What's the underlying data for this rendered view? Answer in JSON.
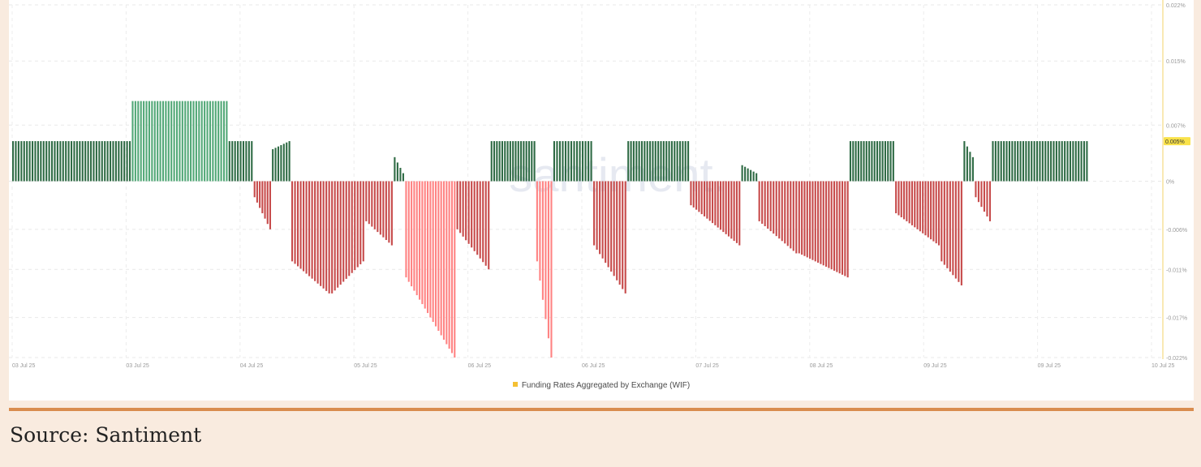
{
  "colors": {
    "positive": "#2f6b45",
    "positive_highlight": "#52a877",
    "negative": "#c74b4b",
    "negative_highlight": "#ff8383",
    "legend": "#f4c033",
    "current_value_bg": "#f9e24a"
  },
  "legend": {
    "label": "Funding Rates Aggregated by Exchange (WIF)"
  },
  "watermark": "santiment.",
  "source": "Source: Santiment",
  "chart_data": {
    "type": "bar",
    "series": [
      {
        "name": "Funding Rates Aggregated by Exchange (WIF)"
      }
    ],
    "current_value_label": "0.005%",
    "y_axis": {
      "position": "right",
      "ticks": [
        {
          "value": 0.022,
          "label": "0.022%"
        },
        {
          "value": 0.015,
          "label": "0.015%"
        },
        {
          "value": 0.007,
          "label": "0.007%"
        },
        {
          "value": 0,
          "label": "0%"
        },
        {
          "value": -0.006,
          "label": "-0.006%"
        },
        {
          "value": -0.011,
          "label": "-0.011%"
        },
        {
          "value": -0.017,
          "label": "-0.017%"
        },
        {
          "value": -0.022,
          "label": "-0.022%"
        }
      ],
      "ylim": [
        -0.022,
        0.022
      ]
    },
    "x_axis": {
      "ticks": [
        {
          "pos": 0,
          "label": "03 Jul 25"
        },
        {
          "pos": 1,
          "label": "03 Jul 25"
        },
        {
          "pos": 2,
          "label": "04 Jul 25"
        },
        {
          "pos": 3,
          "label": "05 Jul 25"
        },
        {
          "pos": 4,
          "label": "06 Jul 25"
        },
        {
          "pos": 5,
          "label": "06 Jul 25"
        },
        {
          "pos": 6,
          "label": "07 Jul 25"
        },
        {
          "pos": 7,
          "label": "08 Jul 25"
        },
        {
          "pos": 8,
          "label": "09 Jul 25"
        },
        {
          "pos": 9,
          "label": "09 Jul 25"
        },
        {
          "pos": 10,
          "label": "10 Jul 25"
        }
      ],
      "range": [
        0,
        10
      ]
    },
    "segments": [
      {
        "start": 0.0,
        "end": 1.05,
        "from": 0.005,
        "to": 0.005
      },
      {
        "start": 1.05,
        "end": 1.9,
        "from": 0.01,
        "to": 0.01,
        "highlight": true
      },
      {
        "start": 1.9,
        "end": 2.12,
        "from": 0.005,
        "to": 0.005
      },
      {
        "start": 2.12,
        "end": 2.28,
        "from": -0.002,
        "to": -0.006
      },
      {
        "start": 2.28,
        "end": 2.45,
        "from": 0.004,
        "to": 0.005
      },
      {
        "start": 2.45,
        "end": 2.8,
        "from": -0.01,
        "to": -0.014
      },
      {
        "start": 2.8,
        "end": 3.1,
        "from": -0.014,
        "to": -0.01
      },
      {
        "start": 3.1,
        "end": 3.35,
        "from": -0.005,
        "to": -0.008
      },
      {
        "start": 3.35,
        "end": 3.45,
        "from": 0.003,
        "to": 0.001
      },
      {
        "start": 3.45,
        "end": 3.9,
        "from": -0.012,
        "to": -0.022,
        "highlight": true
      },
      {
        "start": 3.9,
        "end": 4.2,
        "from": -0.006,
        "to": -0.011
      },
      {
        "start": 4.2,
        "end": 4.6,
        "from": 0.005,
        "to": 0.005
      },
      {
        "start": 4.6,
        "end": 4.75,
        "from": -0.01,
        "to": -0.022,
        "highlight": true
      },
      {
        "start": 4.75,
        "end": 5.1,
        "from": 0.005,
        "to": 0.005
      },
      {
        "start": 5.1,
        "end": 5.4,
        "from": -0.008,
        "to": -0.014
      },
      {
        "start": 5.4,
        "end": 5.95,
        "from": 0.005,
        "to": 0.005
      },
      {
        "start": 5.95,
        "end": 6.4,
        "from": -0.003,
        "to": -0.008
      },
      {
        "start": 6.4,
        "end": 6.55,
        "from": 0.002,
        "to": 0.001
      },
      {
        "start": 6.55,
        "end": 6.9,
        "from": -0.005,
        "to": -0.009
      },
      {
        "start": 6.9,
        "end": 7.35,
        "from": -0.009,
        "to": -0.012
      },
      {
        "start": 7.35,
        "end": 7.75,
        "from": 0.005,
        "to": 0.005
      },
      {
        "start": 7.75,
        "end": 8.15,
        "from": -0.004,
        "to": -0.008
      },
      {
        "start": 8.15,
        "end": 8.35,
        "from": -0.01,
        "to": -0.013
      },
      {
        "start": 8.35,
        "end": 8.45,
        "from": 0.005,
        "to": 0.003
      },
      {
        "start": 8.45,
        "end": 8.6,
        "from": -0.002,
        "to": -0.005
      },
      {
        "start": 8.6,
        "end": 9.45,
        "from": 0.005,
        "to": 0.005
      }
    ]
  }
}
